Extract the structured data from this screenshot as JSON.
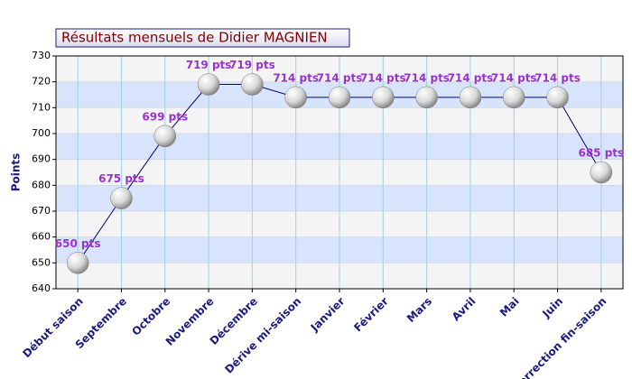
{
  "chart_data": {
    "type": "line",
    "title": "Résultats mensuels de Didier MAGNIEN",
    "y_label": "Points",
    "categories": [
      "Début saison",
      "Septembre",
      "Octobre",
      "Novembre",
      "Décembre",
      "Dérive mi-saison",
      "Janvier",
      "Février",
      "Mars",
      "Avril",
      "Mai",
      "Juin",
      "Correction fin-saison"
    ],
    "values": [
      650,
      675,
      699,
      719,
      719,
      714,
      714,
      714,
      714,
      714,
      714,
      714,
      685
    ],
    "value_labels": [
      "650 pts",
      "675 pts",
      "699 pts",
      "719 pts",
      "719 pts",
      "714 pts",
      "714 pts",
      "714 pts",
      "714 pts",
      "714 pts",
      "714 pts",
      "714 pts",
      "685 pts"
    ],
    "color": "#000080",
    "ylim": [
      640,
      730
    ],
    "yticks": [
      640,
      650,
      660,
      670,
      680,
      690,
      700,
      710,
      720,
      730
    ],
    "grid": true
  }
}
